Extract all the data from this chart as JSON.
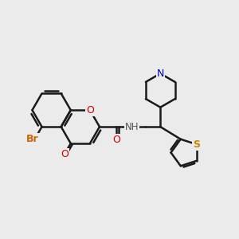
{
  "background_color": "#ebebeb",
  "bond_color": "#1a1a1a",
  "bond_width": 1.8,
  "figsize": [
    3.0,
    3.0
  ],
  "dpi": 100,
  "xlim": [
    0,
    10
  ],
  "ylim": [
    0,
    10
  ]
}
